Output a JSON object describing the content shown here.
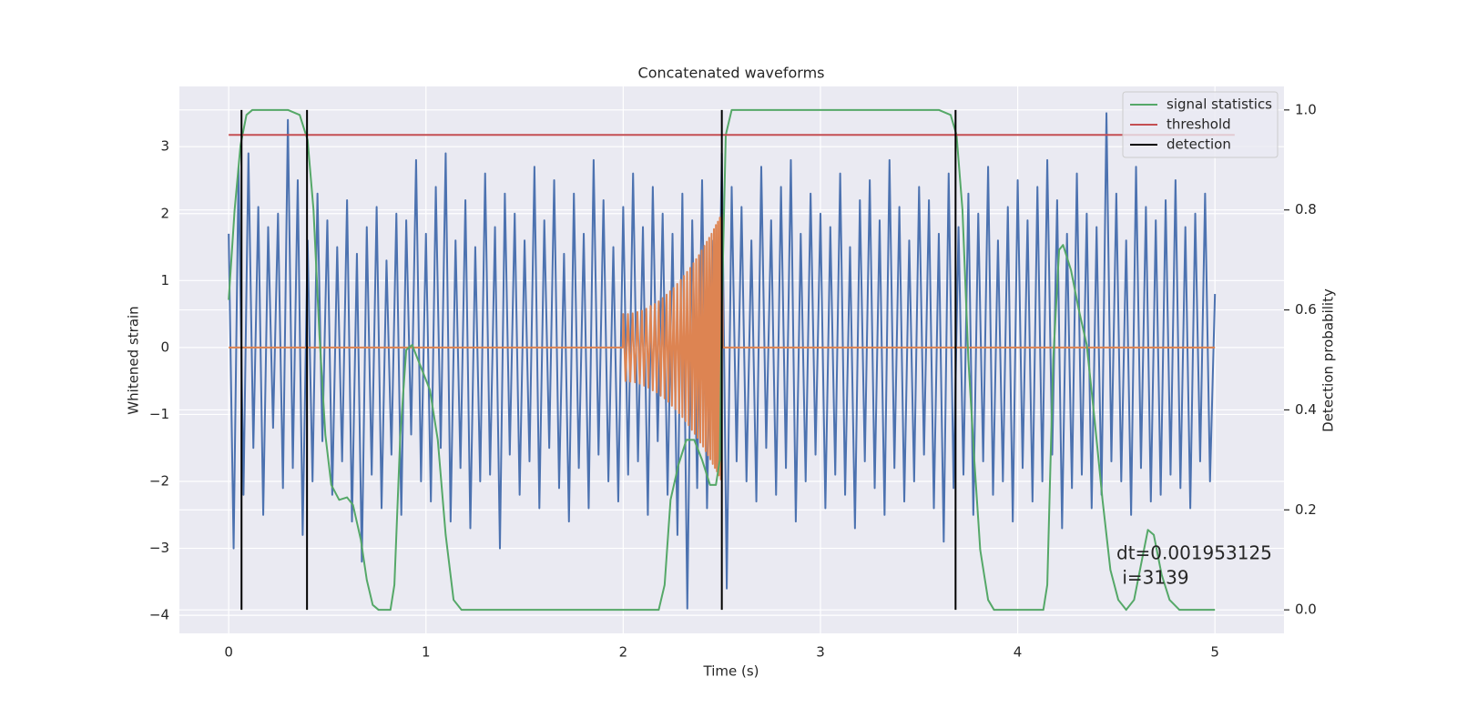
{
  "chart_data": {
    "type": "line",
    "title": "Concatenated waveforms",
    "xlabel": "Time (s)",
    "ylabel": "Whitened strain",
    "y2label": "Detection probability",
    "annotation": [
      "dt=0.001953125",
      " i=3139"
    ],
    "xlim": [
      -0.25,
      5.35
    ],
    "xticks": [
      0,
      1,
      2,
      3,
      4,
      5
    ],
    "ylim": [
      -4.27,
      3.9
    ],
    "yticks": [
      {
        "value": -4,
        "label": "−4"
      },
      {
        "value": -3,
        "label": "−3"
      },
      {
        "value": -2,
        "label": "−2"
      },
      {
        "value": -1,
        "label": "−1"
      },
      0,
      1,
      2,
      3
    ],
    "y2lim": [
      -0.047,
      1.047
    ],
    "y2ticks": [
      {
        "value": 0,
        "label": "0.0"
      },
      0.2,
      0.4,
      0.6,
      0.8,
      {
        "value": 1,
        "label": "1.0"
      }
    ],
    "grid": true,
    "legend": "upper right",
    "series": [
      {
        "color": "#4c72b0",
        "x": [
          0,
          0.025,
          0.05,
          0.075,
          0.1,
          0.125,
          0.15,
          0.175,
          0.2,
          0.225,
          0.25,
          0.275,
          0.3,
          0.325,
          0.35,
          0.375,
          0.4,
          0.425,
          0.45,
          0.475,
          0.5,
          0.525,
          0.55,
          0.575,
          0.6,
          0.625,
          0.65,
          0.675,
          0.7,
          0.725,
          0.75,
          0.775,
          0.8,
          0.825,
          0.85,
          0.875,
          0.9,
          0.925,
          0.95,
          0.975,
          1,
          1.025,
          1.05,
          1.075,
          1.1,
          1.125,
          1.15,
          1.175,
          1.2,
          1.225,
          1.25,
          1.275,
          1.3,
          1.325,
          1.35,
          1.375,
          1.4,
          1.425,
          1.45,
          1.475,
          1.5,
          1.525,
          1.55,
          1.575,
          1.6,
          1.625,
          1.65,
          1.675,
          1.7,
          1.725,
          1.75,
          1.775,
          1.8,
          1.825,
          1.85,
          1.875,
          1.9,
          1.925,
          1.95,
          1.975,
          2,
          2.025,
          2.05,
          2.075,
          2.1,
          2.125,
          2.15,
          2.175,
          2.2,
          2.225,
          2.25,
          2.275,
          2.3,
          2.325,
          2.35,
          2.375,
          2.4,
          2.425,
          2.45,
          2.475,
          2.5,
          2.525,
          2.55,
          2.575,
          2.6,
          2.625,
          2.65,
          2.675,
          2.7,
          2.725,
          2.75,
          2.775,
          2.8,
          2.825,
          2.85,
          2.875,
          2.9,
          2.925,
          2.95,
          2.975,
          3,
          3.025,
          3.05,
          3.075,
          3.1,
          3.125,
          3.15,
          3.175,
          3.2,
          3.225,
          3.25,
          3.275,
          3.3,
          3.325,
          3.35,
          3.375,
          3.4,
          3.425,
          3.45,
          3.475,
          3.5,
          3.525,
          3.55,
          3.575,
          3.6,
          3.625,
          3.65,
          3.675,
          3.7,
          3.725,
          3.75,
          3.775,
          3.8,
          3.825,
          3.85,
          3.875,
          3.9,
          3.925,
          3.95,
          3.975,
          4,
          4.025,
          4.05,
          4.075,
          4.1,
          4.125,
          4.15,
          4.175,
          4.2,
          4.225,
          4.25,
          4.275,
          4.3,
          4.325,
          4.35,
          4.375,
          4.4,
          4.425,
          4.45,
          4.475,
          4.5,
          4.525,
          4.55,
          4.575,
          4.6,
          4.625,
          4.65,
          4.675,
          4.7,
          4.725,
          4.75,
          4.775,
          4.8,
          4.825,
          4.85,
          4.875,
          4.9,
          4.925,
          4.95,
          4.975,
          5
        ],
        "values": [
          1.7,
          -3.0,
          2.7,
          -2.2,
          2.9,
          -1.5,
          2.1,
          -2.5,
          1.8,
          -1.2,
          2.0,
          -2.1,
          3.4,
          -1.8,
          2.5,
          -2.8,
          1.6,
          -2.0,
          2.3,
          -1.4,
          1.9,
          -2.2,
          1.5,
          -1.7,
          2.2,
          -2.6,
          1.4,
          -3.2,
          1.8,
          -1.9,
          2.1,
          -2.4,
          1.3,
          -1.6,
          2.0,
          -2.5,
          1.9,
          -1.3,
          2.8,
          -2.0,
          1.7,
          -2.3,
          2.4,
          -1.5,
          2.9,
          -2.6,
          1.6,
          -1.8,
          2.2,
          -2.7,
          1.5,
          -2.0,
          2.6,
          -1.9,
          1.8,
          -3.0,
          2.3,
          -1.6,
          2.0,
          -2.2,
          1.6,
          -1.7,
          2.7,
          -2.4,
          1.9,
          -1.5,
          2.5,
          -2.1,
          1.4,
          -2.6,
          2.3,
          -1.8,
          1.7,
          -2.4,
          2.8,
          -1.6,
          2.2,
          -2.0,
          1.5,
          -2.3,
          2.1,
          -1.9,
          2.6,
          -1.7,
          1.8,
          -2.5,
          2.4,
          -1.4,
          2.0,
          -2.2,
          1.7,
          -2.8,
          2.3,
          -3.9,
          1.9,
          -2.1,
          2.5,
          -2.4,
          1.6,
          -1.8,
          2.9,
          -3.6,
          2.4,
          -1.7,
          2.1,
          -2.0,
          1.6,
          -2.3,
          2.7,
          -1.5,
          1.9,
          -2.2,
          2.4,
          -1.8,
          2.8,
          -2.6,
          1.7,
          -2.0,
          2.3,
          -1.6,
          2.0,
          -2.4,
          1.8,
          -1.9,
          2.6,
          -2.2,
          1.5,
          -2.7,
          2.2,
          -1.7,
          2.5,
          -2.1,
          1.9,
          -2.5,
          2.8,
          -1.8,
          2.1,
          -2.3,
          1.6,
          -2.0,
          2.4,
          -1.6,
          2.2,
          -2.4,
          1.7,
          -2.9,
          2.6,
          -2.1,
          1.8,
          -1.9,
          2.3,
          -2.5,
          2.0,
          -1.7,
          2.7,
          -2.2,
          1.6,
          -2.0,
          2.1,
          -2.6,
          2.5,
          -1.8,
          1.9,
          -2.3,
          2.4,
          -2.0,
          2.8,
          -1.6,
          2.2,
          -2.7,
          1.7,
          -2.1,
          2.6,
          -1.9,
          2.0,
          -2.4,
          1.8,
          -2.2,
          3.5,
          -1.7,
          2.3,
          -2.0,
          1.6,
          -2.5,
          2.7,
          -1.8,
          2.1,
          -2.3,
          1.9,
          -2.2,
          2.2,
          -1.9,
          2.5,
          -2.1,
          1.8,
          -2.4,
          2.0,
          -1.7,
          2.3,
          -2.0,
          0.8
        ]
      },
      {
        "color": "#dd8452",
        "x": [
          0,
          1.998,
          2.0,
          2.012,
          2.024,
          2.036,
          2.048,
          2.06,
          2.072,
          2.084,
          2.095,
          2.106,
          2.117,
          2.128,
          2.139,
          2.15,
          2.16,
          2.17,
          2.18,
          2.19,
          2.2,
          2.21,
          2.22,
          2.229,
          2.238,
          2.247,
          2.256,
          2.265,
          2.274,
          2.283,
          2.292,
          2.3,
          2.308,
          2.316,
          2.324,
          2.332,
          2.34,
          2.348,
          2.356,
          2.363,
          2.37,
          2.377,
          2.384,
          2.391,
          2.398,
          2.405,
          2.412,
          2.418,
          2.424,
          2.43,
          2.436,
          2.442,
          2.448,
          2.454,
          2.46,
          2.465,
          2.47,
          2.475,
          2.48,
          2.485,
          2.49,
          2.495,
          2.5,
          2.505,
          5
        ],
        "values": [
          0,
          0,
          0.5,
          -0.5,
          0.5,
          -0.51,
          0.51,
          -0.52,
          0.53,
          -0.54,
          0.55,
          -0.57,
          0.58,
          -0.6,
          0.62,
          -0.64,
          0.65,
          -0.67,
          0.69,
          -0.72,
          0.74,
          -0.76,
          0.79,
          -0.81,
          0.84,
          -0.87,
          0.89,
          -0.92,
          0.95,
          -0.98,
          1.01,
          -1.04,
          1.07,
          -1.1,
          1.13,
          -1.16,
          1.19,
          -1.23,
          1.26,
          -1.29,
          1.32,
          -1.35,
          1.38,
          -1.42,
          1.45,
          -1.48,
          1.52,
          -1.55,
          1.58,
          -1.61,
          1.64,
          -1.67,
          1.7,
          -1.74,
          1.77,
          -1.8,
          1.83,
          -1.85,
          1.88,
          -1.91,
          1.94,
          -1.97,
          2.0,
          0,
          0
        ]
      },
      {
        "name": "signal statistics",
        "color": "#55a868",
        "axis": "y2",
        "x": [
          0.0,
          0.03,
          0.06,
          0.09,
          0.12,
          0.3,
          0.36,
          0.4,
          0.43,
          0.46,
          0.49,
          0.52,
          0.56,
          0.6,
          0.63,
          0.67,
          0.7,
          0.73,
          0.76,
          0.82,
          0.84,
          0.87,
          0.9,
          0.93,
          0.97,
          1.02,
          1.06,
          1.1,
          1.14,
          1.18,
          2.18,
          2.21,
          2.24,
          2.28,
          2.32,
          2.36,
          2.4,
          2.44,
          2.47,
          2.49,
          2.5,
          2.52,
          2.55,
          3.6,
          3.66,
          3.69,
          3.72,
          3.75,
          3.78,
          3.81,
          3.85,
          3.88,
          4.13,
          4.15,
          4.18,
          4.21,
          4.23,
          4.27,
          4.31,
          4.35,
          4.39,
          4.43,
          4.47,
          4.51,
          4.55,
          4.59,
          4.63,
          4.66,
          4.69,
          4.73,
          4.77,
          4.82,
          5.0
        ],
        "values": [
          0.62,
          0.8,
          0.93,
          0.99,
          1.0,
          1.0,
          0.99,
          0.94,
          0.8,
          0.55,
          0.35,
          0.25,
          0.22,
          0.225,
          0.21,
          0.14,
          0.06,
          0.01,
          0.0,
          0.0,
          0.05,
          0.35,
          0.52,
          0.53,
          0.49,
          0.44,
          0.34,
          0.15,
          0.02,
          0.0,
          0.0,
          0.05,
          0.22,
          0.29,
          0.34,
          0.34,
          0.3,
          0.25,
          0.25,
          0.3,
          0.6,
          0.95,
          1.0,
          1.0,
          0.99,
          0.95,
          0.8,
          0.5,
          0.3,
          0.12,
          0.02,
          0.0,
          0.0,
          0.05,
          0.5,
          0.72,
          0.73,
          0.68,
          0.6,
          0.53,
          0.38,
          0.22,
          0.08,
          0.02,
          0.0,
          0.02,
          0.1,
          0.16,
          0.15,
          0.07,
          0.02,
          0.0,
          0.0
        ]
      },
      {
        "name": "threshold",
        "color": "#c44e52",
        "axis": "y2",
        "x": [
          0,
          5.1
        ],
        "values": [
          0.95,
          0.95
        ]
      },
      {
        "name": "detection",
        "color": "#000000",
        "axis": "y2",
        "kind": "vlines",
        "x": [
          0.065,
          0.397,
          2.5,
          3.685
        ],
        "values": [
          1,
          1,
          1,
          1
        ]
      }
    ]
  }
}
